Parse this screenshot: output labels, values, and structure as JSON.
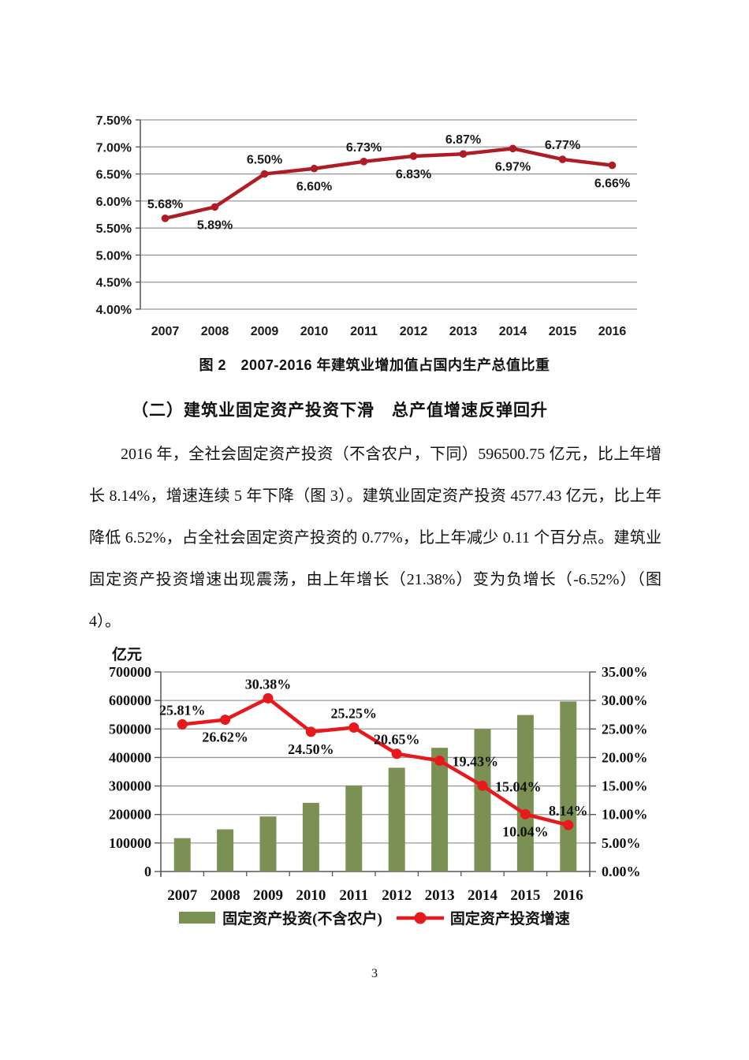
{
  "page": {
    "number": "3",
    "background": "#ffffff"
  },
  "figure2": {
    "caption": "图 2　2007-2016 年建筑业增加值占国内生产总值比重"
  },
  "section": {
    "heading": "（二）建筑业固定资产投资下滑　总产值增速反弹回升",
    "paragraph": "2016 年，全社会固定资产投资（不含农户，下同）596500.75 亿元，比上年增长 8.14%，增速连续 5 年下降（图 3）。建筑业固定资产投资 4577.43 亿元，比上年降低 6.52%，占全社会固定资产投资的 0.77%，比上年减少 0.11 个百分点。建筑业固定资产投资增速出现震荡，由上年增长（21.38%）变为负增长（-6.52%）（图 4）。"
  },
  "colors": {
    "dark_red_line": "#b01c24",
    "bright_red_line": "#e8191d",
    "olive_bar": "#7b9153",
    "gridline": "#999999",
    "axis": "#555555"
  },
  "chart_data": [
    {
      "type": "line",
      "title": "2007-2016 年建筑业增加值占国内生产总值比重",
      "categories": [
        "2007",
        "2008",
        "2009",
        "2010",
        "2011",
        "2012",
        "2013",
        "2014",
        "2015",
        "2016"
      ],
      "series": [
        {
          "name": "建筑业增加值占国内生产总值比重",
          "values": [
            5.68,
            5.89,
            6.5,
            6.6,
            6.73,
            6.83,
            6.87,
            6.97,
            6.77,
            6.66
          ]
        }
      ],
      "point_labels": [
        "5.68%",
        "5.89%",
        "6.50%",
        "6.60%",
        "6.73%",
        "6.83%",
        "6.87%",
        "6.97%",
        "6.77%",
        "6.66%"
      ],
      "label_pos": [
        "above",
        "below",
        "above",
        "below",
        "above",
        "below",
        "above",
        "below",
        "above",
        "below"
      ],
      "ylim": [
        4.0,
        7.5
      ],
      "ytick_values": [
        7.5,
        7.0,
        6.5,
        6.0,
        5.5,
        5.0,
        4.5,
        4.0
      ],
      "ytick_labels": [
        "7.50%",
        "7.00%",
        "6.50%",
        "6.00%",
        "5.50%",
        "5.00%",
        "4.50%",
        "4.00%"
      ],
      "line_color": "#b01c24",
      "grid": true,
      "legend_position": "none"
    },
    {
      "type": "bar+line",
      "categories": [
        "2007",
        "2008",
        "2009",
        "2010",
        "2011",
        "2012",
        "2013",
        "2014",
        "2015",
        "2016"
      ],
      "bar_series": {
        "name": "固定资产投资(不含农户)",
        "axis": "left",
        "color": "#7b9153",
        "values": [
          117000,
          148000,
          193000,
          241000,
          302000,
          364000,
          434000,
          500000,
          549000,
          596500
        ]
      },
      "line_series": {
        "name": "固定资产投资增速",
        "axis": "right",
        "color": "#e8191d",
        "values": [
          25.81,
          26.62,
          30.38,
          24.5,
          25.25,
          20.65,
          19.43,
          15.04,
          10.04,
          8.14
        ]
      },
      "point_labels": [
        "25.81%",
        "26.62%",
        "30.38%",
        "24.50%",
        "25.25%",
        "20.65%",
        "19.43%",
        "15.04%",
        "10.04%",
        "8.14%"
      ],
      "label_pos": [
        "above",
        "below",
        "above",
        "below",
        "above",
        "above",
        "right",
        "right",
        "below",
        "above"
      ],
      "left_axis": {
        "title": "亿元",
        "min": 0,
        "max": 700000,
        "tick_values": [
          700000,
          600000,
          500000,
          400000,
          300000,
          200000,
          100000,
          0
        ],
        "tick_labels": [
          "700000",
          "600000",
          "500000",
          "400000",
          "300000",
          "200000",
          "100000",
          "0"
        ]
      },
      "right_axis": {
        "min": 0,
        "max": 35,
        "tick_values": [
          35,
          30,
          25,
          20,
          15,
          10,
          5,
          0
        ],
        "tick_labels": [
          "35.00%",
          "30.00%",
          "25.00%",
          "20.00%",
          "15.00%",
          "10.00%",
          "5.00%",
          "0.00%"
        ]
      },
      "grid": true,
      "legend_position": "bottom"
    }
  ]
}
